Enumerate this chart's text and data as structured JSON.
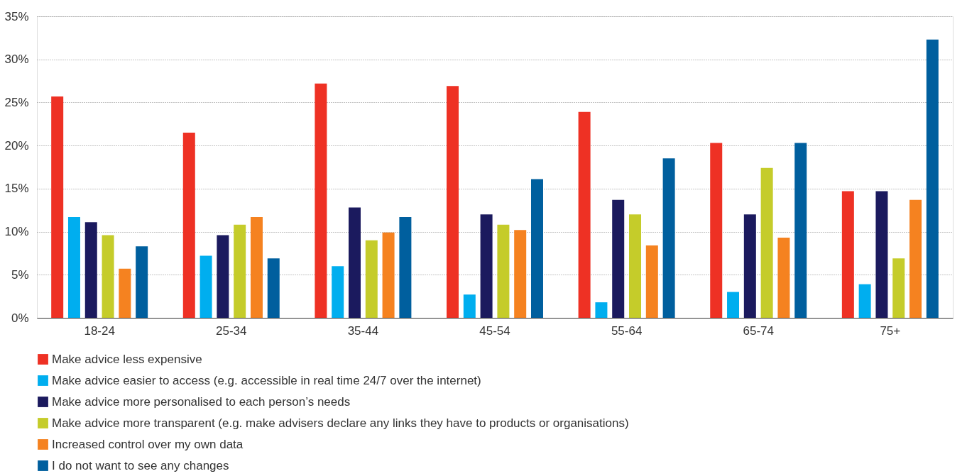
{
  "chart_data": {
    "type": "bar",
    "categories": [
      "18-24",
      "25-34",
      "35-44",
      "45-54",
      "55-64",
      "65-74",
      "75+"
    ],
    "series": [
      {
        "name": "Make advice less expensive",
        "color": "#ee3124",
        "values": [
          25.7,
          21.5,
          27.2,
          26.9,
          23.9,
          20.3,
          14.7
        ]
      },
      {
        "name": "Make advice easier to access (e.g. accessible in real time 24/7 over the internet)",
        "color": "#00aeef",
        "values": [
          11.7,
          7.2,
          6.0,
          2.7,
          1.8,
          3.0,
          3.9
        ]
      },
      {
        "name": "Make advice more personalised to each person’s needs",
        "color": "#1b1a5e",
        "values": [
          11.1,
          9.6,
          12.8,
          12.0,
          13.7,
          12.0,
          14.7
        ]
      },
      {
        "name": "Make advice more transparent (e.g. make advisers declare any links they have to products or organisations)",
        "color": "#c5cc2a",
        "values": [
          9.6,
          10.8,
          9.0,
          10.8,
          12.0,
          17.4,
          6.9
        ]
      },
      {
        "name": "Increased control over my own data",
        "color": "#f58220",
        "values": [
          5.7,
          11.7,
          9.9,
          10.2,
          8.4,
          9.3,
          13.7
        ]
      },
      {
        "name": "I do not want to see any changes",
        "color": "#005f9e",
        "values": [
          8.3,
          6.9,
          11.7,
          16.1,
          18.5,
          20.3,
          32.3
        ]
      }
    ],
    "ylim": [
      0,
      35
    ],
    "yticks": [
      {
        "value": 0,
        "label": "0%"
      },
      {
        "value": 5,
        "label": "5%"
      },
      {
        "value": 10,
        "label": "10%"
      },
      {
        "value": 15,
        "label": "15%"
      },
      {
        "value": 20,
        "label": "20%"
      },
      {
        "value": 25,
        "label": "25%"
      },
      {
        "value": 30,
        "label": "30%"
      },
      {
        "value": 35,
        "label": "35%"
      }
    ],
    "grid": "y",
    "legend": "bottom"
  }
}
